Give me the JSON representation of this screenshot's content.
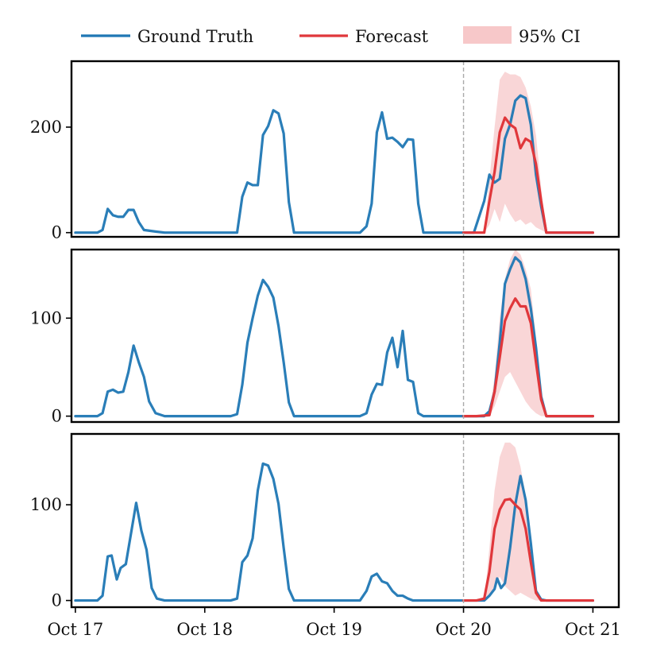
{
  "chart_data": {
    "type": "line",
    "legend": {
      "placement": "top",
      "entries": [
        {
          "label": "Ground Truth",
          "color": "#1f77b4",
          "kind": "line"
        },
        {
          "label": "Forecast",
          "color": "#e0373b",
          "kind": "line"
        },
        {
          "label": "95% CI",
          "color": "#f7c8c9",
          "kind": "patch"
        }
      ]
    },
    "x_axis": {
      "range": [
        -0.03,
        4.2
      ],
      "ticks": [
        {
          "value": 0,
          "label": "Oct 17"
        },
        {
          "value": 1,
          "label": "Oct 18"
        },
        {
          "value": 2,
          "label": "Oct 19"
        },
        {
          "value": 3,
          "label": "Oct 20"
        },
        {
          "value": 4,
          "label": "Oct 21"
        }
      ],
      "x_unit": "days since Oct 17 00:00",
      "forecast_start": 3.0
    },
    "colors": {
      "ground_truth": "#1f77b4",
      "forecast": "#e0373b",
      "ci": "#f7c8c9",
      "divider": "#aaaaaa"
    },
    "panels": [
      {
        "ylim": [
          -8,
          325
        ],
        "yticks": [
          {
            "value": 0,
            "label": "0"
          },
          {
            "value": 200,
            "label": "200"
          }
        ],
        "ground_truth": [
          [
            0.0,
            0
          ],
          [
            0.17,
            0
          ],
          [
            0.21,
            5
          ],
          [
            0.25,
            45
          ],
          [
            0.29,
            33
          ],
          [
            0.33,
            30
          ],
          [
            0.37,
            30
          ],
          [
            0.41,
            43
          ],
          [
            0.45,
            43
          ],
          [
            0.49,
            20
          ],
          [
            0.53,
            5
          ],
          [
            0.62,
            2
          ],
          [
            0.69,
            0
          ],
          [
            1.2,
            0
          ],
          [
            1.25,
            0
          ],
          [
            1.29,
            68
          ],
          [
            1.33,
            95
          ],
          [
            1.37,
            90
          ],
          [
            1.41,
            90
          ],
          [
            1.45,
            185
          ],
          [
            1.49,
            202
          ],
          [
            1.53,
            232
          ],
          [
            1.57,
            226
          ],
          [
            1.61,
            188
          ],
          [
            1.65,
            58
          ],
          [
            1.69,
            0
          ],
          [
            2.2,
            0
          ],
          [
            2.25,
            12
          ],
          [
            2.29,
            55
          ],
          [
            2.33,
            190
          ],
          [
            2.37,
            228
          ],
          [
            2.41,
            178
          ],
          [
            2.45,
            180
          ],
          [
            2.49,
            172
          ],
          [
            2.53,
            162
          ],
          [
            2.57,
            177
          ],
          [
            2.61,
            176
          ],
          [
            2.65,
            55
          ],
          [
            2.69,
            0
          ],
          [
            3.0,
            0
          ],
          [
            3.08,
            0
          ],
          [
            3.16,
            60
          ],
          [
            3.2,
            110
          ],
          [
            3.24,
            95
          ],
          [
            3.28,
            102
          ],
          [
            3.32,
            178
          ],
          [
            3.36,
            205
          ],
          [
            3.4,
            250
          ],
          [
            3.44,
            260
          ],
          [
            3.48,
            255
          ],
          [
            3.52,
            205
          ],
          [
            3.56,
            110
          ],
          [
            3.6,
            50
          ],
          [
            3.64,
            0
          ],
          [
            4.0,
            0
          ]
        ],
        "forecast": [
          [
            3.0,
            0
          ],
          [
            3.1,
            0
          ],
          [
            3.16,
            0
          ],
          [
            3.2,
            60
          ],
          [
            3.24,
            115
          ],
          [
            3.28,
            190
          ],
          [
            3.32,
            218
          ],
          [
            3.36,
            205
          ],
          [
            3.4,
            198
          ],
          [
            3.44,
            160
          ],
          [
            3.48,
            178
          ],
          [
            3.52,
            172
          ],
          [
            3.56,
            130
          ],
          [
            3.6,
            60
          ],
          [
            3.64,
            0
          ],
          [
            4.0,
            0
          ]
        ],
        "ci_upper": [
          [
            3.0,
            0
          ],
          [
            3.16,
            0
          ],
          [
            3.2,
            100
          ],
          [
            3.24,
            200
          ],
          [
            3.28,
            290
          ],
          [
            3.32,
            305
          ],
          [
            3.36,
            300
          ],
          [
            3.4,
            300
          ],
          [
            3.44,
            295
          ],
          [
            3.48,
            275
          ],
          [
            3.52,
            240
          ],
          [
            3.56,
            185
          ],
          [
            3.6,
            85
          ],
          [
            3.64,
            0
          ],
          [
            4.0,
            0
          ]
        ],
        "ci_lower": [
          [
            3.0,
            0
          ],
          [
            3.16,
            0
          ],
          [
            3.2,
            15
          ],
          [
            3.24,
            45
          ],
          [
            3.28,
            20
          ],
          [
            3.32,
            55
          ],
          [
            3.36,
            35
          ],
          [
            3.4,
            20
          ],
          [
            3.44,
            25
          ],
          [
            3.48,
            15
          ],
          [
            3.52,
            20
          ],
          [
            3.56,
            10
          ],
          [
            3.6,
            5
          ],
          [
            3.64,
            0
          ],
          [
            4.0,
            0
          ]
        ]
      },
      {
        "ylim": [
          -6,
          170
        ],
        "yticks": [
          {
            "value": 0,
            "label": "0"
          },
          {
            "value": 100,
            "label": "100"
          }
        ],
        "ground_truth": [
          [
            0.0,
            0
          ],
          [
            0.17,
            0
          ],
          [
            0.21,
            3
          ],
          [
            0.25,
            25
          ],
          [
            0.29,
            27
          ],
          [
            0.33,
            24
          ],
          [
            0.37,
            25
          ],
          [
            0.41,
            45
          ],
          [
            0.45,
            72
          ],
          [
            0.49,
            55
          ],
          [
            0.53,
            40
          ],
          [
            0.57,
            15
          ],
          [
            0.62,
            3
          ],
          [
            0.69,
            0
          ],
          [
            1.2,
            0
          ],
          [
            1.25,
            2
          ],
          [
            1.29,
            32
          ],
          [
            1.33,
            75
          ],
          [
            1.37,
            100
          ],
          [
            1.41,
            123
          ],
          [
            1.45,
            139
          ],
          [
            1.49,
            132
          ],
          [
            1.53,
            121
          ],
          [
            1.57,
            92
          ],
          [
            1.61,
            55
          ],
          [
            1.65,
            14
          ],
          [
            1.69,
            0
          ],
          [
            2.2,
            0
          ],
          [
            2.25,
            3
          ],
          [
            2.29,
            22
          ],
          [
            2.33,
            33
          ],
          [
            2.37,
            32
          ],
          [
            2.41,
            65
          ],
          [
            2.45,
            80
          ],
          [
            2.49,
            50
          ],
          [
            2.53,
            87
          ],
          [
            2.57,
            37
          ],
          [
            2.61,
            35
          ],
          [
            2.65,
            3
          ],
          [
            2.69,
            0
          ],
          [
            3.0,
            0
          ],
          [
            3.16,
            0
          ],
          [
            3.2,
            5
          ],
          [
            3.24,
            25
          ],
          [
            3.28,
            75
          ],
          [
            3.32,
            135
          ],
          [
            3.36,
            150
          ],
          [
            3.4,
            162
          ],
          [
            3.44,
            157
          ],
          [
            3.48,
            140
          ],
          [
            3.52,
            110
          ],
          [
            3.56,
            70
          ],
          [
            3.6,
            20
          ],
          [
            3.64,
            0
          ],
          [
            4.0,
            0
          ]
        ],
        "forecast": [
          [
            3.0,
            0
          ],
          [
            3.1,
            0
          ],
          [
            3.2,
            1
          ],
          [
            3.24,
            25
          ],
          [
            3.28,
            60
          ],
          [
            3.32,
            97
          ],
          [
            3.36,
            110
          ],
          [
            3.4,
            120
          ],
          [
            3.44,
            112
          ],
          [
            3.48,
            112
          ],
          [
            3.52,
            95
          ],
          [
            3.56,
            55
          ],
          [
            3.6,
            17
          ],
          [
            3.64,
            0
          ],
          [
            4.0,
            0
          ]
        ],
        "ci_upper": [
          [
            3.0,
            0
          ],
          [
            3.16,
            0
          ],
          [
            3.2,
            5
          ],
          [
            3.24,
            40
          ],
          [
            3.28,
            100
          ],
          [
            3.32,
            140
          ],
          [
            3.36,
            160
          ],
          [
            3.4,
            170
          ],
          [
            3.44,
            165
          ],
          [
            3.48,
            150
          ],
          [
            3.52,
            130
          ],
          [
            3.56,
            80
          ],
          [
            3.6,
            25
          ],
          [
            3.64,
            0
          ],
          [
            4.0,
            0
          ]
        ],
        "ci_lower": [
          [
            3.0,
            0
          ],
          [
            3.16,
            0
          ],
          [
            3.2,
            0
          ],
          [
            3.24,
            10
          ],
          [
            3.28,
            25
          ],
          [
            3.32,
            40
          ],
          [
            3.36,
            45
          ],
          [
            3.4,
            35
          ],
          [
            3.44,
            25
          ],
          [
            3.48,
            15
          ],
          [
            3.52,
            8
          ],
          [
            3.56,
            3
          ],
          [
            3.6,
            0
          ],
          [
            4.0,
            0
          ]
        ]
      },
      {
        "ylim": [
          -7,
          174
        ],
        "yticks": [
          {
            "value": 0,
            "label": "0"
          },
          {
            "value": 100,
            "label": "100"
          }
        ],
        "ground_truth": [
          [
            0.0,
            0
          ],
          [
            0.17,
            0
          ],
          [
            0.21,
            5
          ],
          [
            0.25,
            46
          ],
          [
            0.28,
            47
          ],
          [
            0.32,
            22
          ],
          [
            0.35,
            34
          ],
          [
            0.39,
            38
          ],
          [
            0.43,
            70
          ],
          [
            0.47,
            102
          ],
          [
            0.51,
            73
          ],
          [
            0.55,
            53
          ],
          [
            0.59,
            13
          ],
          [
            0.63,
            2
          ],
          [
            0.69,
            0
          ],
          [
            1.2,
            0
          ],
          [
            1.25,
            2
          ],
          [
            1.29,
            40
          ],
          [
            1.33,
            47
          ],
          [
            1.37,
            65
          ],
          [
            1.41,
            115
          ],
          [
            1.45,
            143
          ],
          [
            1.49,
            141
          ],
          [
            1.53,
            127
          ],
          [
            1.57,
            101
          ],
          [
            1.61,
            55
          ],
          [
            1.65,
            12
          ],
          [
            1.69,
            0
          ],
          [
            2.2,
            0
          ],
          [
            2.25,
            10
          ],
          [
            2.29,
            25
          ],
          [
            2.33,
            28
          ],
          [
            2.37,
            20
          ],
          [
            2.41,
            18
          ],
          [
            2.45,
            10
          ],
          [
            2.49,
            5
          ],
          [
            2.53,
            5
          ],
          [
            2.57,
            2
          ],
          [
            2.61,
            0
          ],
          [
            3.0,
            0
          ],
          [
            3.16,
            0
          ],
          [
            3.2,
            5
          ],
          [
            3.24,
            12
          ],
          [
            3.26,
            23
          ],
          [
            3.29,
            13
          ],
          [
            3.32,
            18
          ],
          [
            3.36,
            55
          ],
          [
            3.4,
            100
          ],
          [
            3.44,
            130
          ],
          [
            3.48,
            105
          ],
          [
            3.52,
            60
          ],
          [
            3.56,
            10
          ],
          [
            3.6,
            1
          ],
          [
            3.64,
            0
          ],
          [
            4.0,
            0
          ]
        ],
        "forecast": [
          [
            3.0,
            0
          ],
          [
            3.1,
            0
          ],
          [
            3.16,
            2
          ],
          [
            3.2,
            30
          ],
          [
            3.24,
            75
          ],
          [
            3.28,
            95
          ],
          [
            3.32,
            105
          ],
          [
            3.36,
            106
          ],
          [
            3.4,
            100
          ],
          [
            3.44,
            95
          ],
          [
            3.48,
            75
          ],
          [
            3.52,
            40
          ],
          [
            3.56,
            8
          ],
          [
            3.6,
            0
          ],
          [
            4.0,
            0
          ]
        ],
        "ci_upper": [
          [
            3.0,
            0
          ],
          [
            3.16,
            0
          ],
          [
            3.2,
            55
          ],
          [
            3.24,
            115
          ],
          [
            3.28,
            150
          ],
          [
            3.32,
            165
          ],
          [
            3.36,
            165
          ],
          [
            3.4,
            160
          ],
          [
            3.44,
            140
          ],
          [
            3.48,
            110
          ],
          [
            3.52,
            60
          ],
          [
            3.56,
            12
          ],
          [
            3.6,
            0
          ],
          [
            4.0,
            0
          ]
        ],
        "ci_lower": [
          [
            3.0,
            0
          ],
          [
            3.16,
            0
          ],
          [
            3.2,
            5
          ],
          [
            3.24,
            15
          ],
          [
            3.28,
            25
          ],
          [
            3.32,
            15
          ],
          [
            3.36,
            10
          ],
          [
            3.4,
            5
          ],
          [
            3.44,
            8
          ],
          [
            3.48,
            5
          ],
          [
            3.52,
            2
          ],
          [
            3.56,
            0
          ],
          [
            4.0,
            0
          ]
        ]
      }
    ]
  }
}
